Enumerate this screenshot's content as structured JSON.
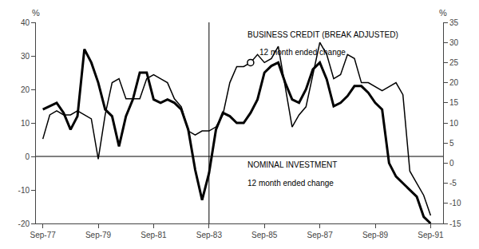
{
  "chart_data": {
    "type": "line",
    "x": [
      1977.75,
      1978.0,
      1978.25,
      1978.5,
      1978.75,
      1979.0,
      1979.25,
      1979.5,
      1979.75,
      1980.0,
      1980.25,
      1980.5,
      1980.75,
      1981.0,
      1981.25,
      1981.5,
      1981.75,
      1982.0,
      1982.25,
      1982.5,
      1982.75,
      1983.0,
      1983.25,
      1983.5,
      1983.75,
      1984.0,
      1984.25,
      1984.5,
      1984.75,
      1985.0,
      1985.25,
      1985.5,
      1985.75,
      1986.0,
      1986.25,
      1986.5,
      1986.75,
      1987.0,
      1987.25,
      1987.5,
      1987.75,
      1988.0,
      1988.25,
      1988.5,
      1988.75,
      1989.0,
      1989.25,
      1989.5,
      1989.75,
      1990.0,
      1990.25,
      1990.5,
      1990.75,
      1991.0,
      1991.25,
      1991.5,
      1991.75
    ],
    "series": [
      {
        "color": "#000000",
        "axis": "y",
        "values": [
          14,
          15,
          16,
          13,
          8,
          12,
          32,
          28,
          22,
          14,
          12,
          3,
          12,
          17,
          25,
          25,
          17,
          16,
          17,
          16,
          14,
          8,
          -4,
          -13,
          -5,
          8,
          13,
          12,
          10,
          10,
          13,
          17,
          25,
          27,
          28,
          22,
          17,
          16,
          20,
          26,
          28,
          23,
          15,
          16,
          18,
          21,
          21,
          19,
          16,
          14,
          -2,
          -6,
          -8,
          -10,
          -12,
          -18,
          -20
        ]
      },
      {
        "color": "#000000",
        "axis": "y2",
        "values": [
          6,
          12,
          13,
          12,
          12,
          13,
          12,
          11,
          1,
          12,
          20,
          21,
          16,
          16,
          16,
          21,
          22,
          21,
          20,
          16,
          14,
          8,
          7,
          8,
          8,
          9,
          12,
          20,
          24,
          24,
          25,
          27,
          25,
          26,
          29,
          19,
          9,
          12,
          14,
          22,
          30,
          27,
          21,
          22,
          27,
          26,
          20,
          20,
          19,
          18,
          19,
          20,
          17,
          -2,
          -5,
          -8,
          -13
        ]
      },
      {
        "type": "scatter",
        "marker": "circle",
        "color": "#000000",
        "axis": "y2",
        "x": [
          1985.25
        ],
        "values": [
          25
        ]
      }
    ],
    "ylabel": "%",
    "y2label": "%",
    "annotations": [
      "BUSINESS CREDIT (BREAK ADJUSTED)",
      "12 month ended change",
      "NOMINAL INVESTMENT",
      "12 month ended change"
    ],
    "vlines": [
      1983.75
    ],
    "hlines": [
      0
    ],
    "xlim": [
      1977.5,
      1992.2
    ],
    "xticks": [
      {
        "value": 1977.75,
        "label": "Sep-77"
      },
      {
        "value": 1979.75,
        "label": "Sep-79"
      },
      {
        "value": 1981.75,
        "label": "Sep-81"
      },
      {
        "value": 1983.75,
        "label": "Sep-83"
      },
      {
        "value": 1985.75,
        "label": "Sep-85"
      },
      {
        "value": 1987.75,
        "label": "Sep-87"
      },
      {
        "value": 1989.75,
        "label": "Sep-89"
      },
      {
        "value": 1991.75,
        "label": "Sep-91"
      }
    ],
    "ylim": [
      -20,
      40
    ],
    "yticks": [
      -20,
      -10,
      0,
      10,
      20,
      30,
      40
    ],
    "y2lim": [
      -15,
      35
    ],
    "y2ticks": [
      -15,
      -10,
      -5,
      0,
      5,
      10,
      15,
      20,
      25,
      30,
      35
    ],
    "grid": false
  }
}
